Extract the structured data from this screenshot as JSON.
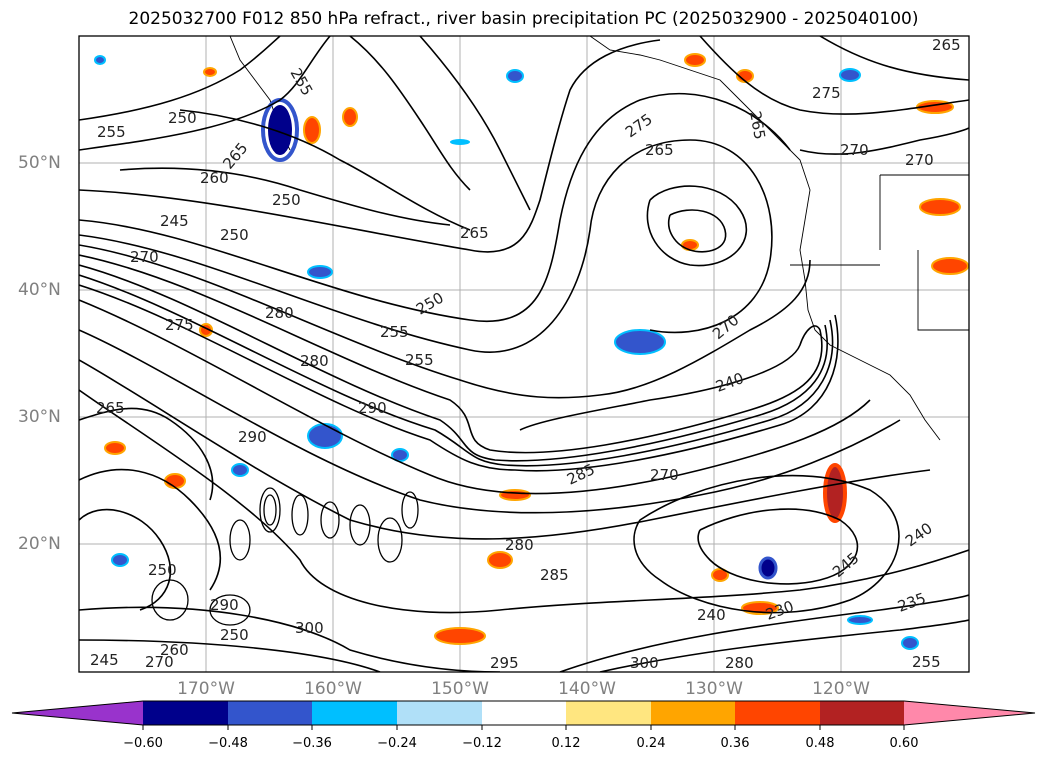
{
  "title": "2025032700 F012 850 hPa refract., river basin precipitation PC (2025032900 - 2025040100)",
  "map": {
    "lat_labels": [
      "50°N",
      "40°N",
      "30°N",
      "20°N"
    ],
    "lon_labels": [
      "170°W",
      "160°W",
      "150°W",
      "140°W",
      "130°W",
      "120°W"
    ],
    "contour_labels": [
      "255",
      "250",
      "255",
      "265",
      "260",
      "250",
      "245",
      "250",
      "270",
      "275",
      "280",
      "255",
      "255",
      "280",
      "290",
      "290",
      "265",
      "265",
      "275",
      "265",
      "270",
      "270",
      "250",
      "285",
      "240",
      "270",
      "290",
      "250",
      "250",
      "300",
      "260",
      "245",
      "270",
      "280",
      "285",
      "295",
      "300",
      "280",
      "240",
      "230",
      "245",
      "235",
      "240",
      "255",
      "265",
      "270",
      "275",
      "265"
    ]
  },
  "colorbar": {
    "ticks": [
      "−0.60",
      "−0.48",
      "−0.36",
      "−0.24",
      "−0.12",
      "0.12",
      "0.24",
      "0.36",
      "0.48",
      "0.60"
    ],
    "colors": [
      "#9933cc",
      "#00008b",
      "#3355cc",
      "#00bfff",
      "#b0e0f8",
      "#ffffff",
      "#ffe680",
      "#ffa500",
      "#ff4500",
      "#b22222",
      "#ff88aa"
    ]
  }
}
